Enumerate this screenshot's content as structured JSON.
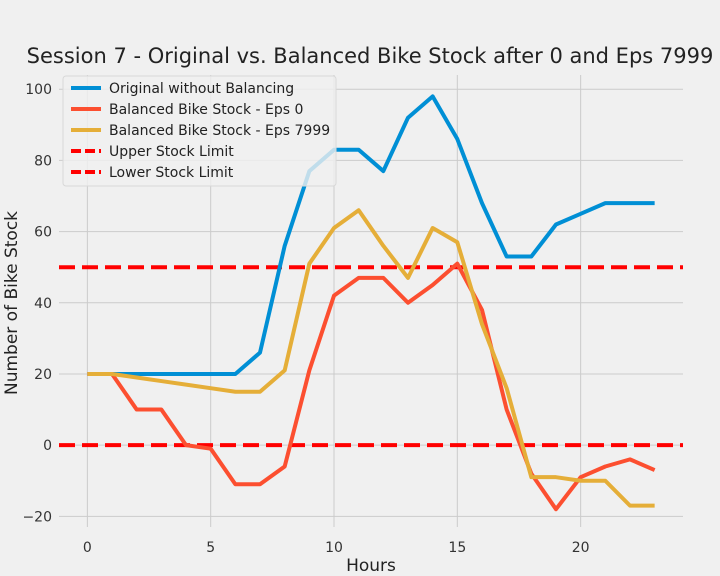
{
  "chart_data": {
    "type": "line",
    "title": "Session 7 - Original vs. Balanced Bike Stock after 0 and Eps 7999",
    "xlabel": "Hours",
    "ylabel": "Number of Bike Stock",
    "xlim": [
      -1.15,
      24.15
    ],
    "ylim": [
      -23,
      104
    ],
    "x_ticks": [
      0,
      5,
      10,
      15,
      20
    ],
    "y_ticks": [
      -20,
      0,
      20,
      40,
      60,
      80,
      100
    ],
    "y_tick_labels": [
      "−20",
      "0",
      "20",
      "40",
      "60",
      "80",
      "100"
    ],
    "grid": true,
    "legend_position": "top-left",
    "x": [
      0,
      1,
      2,
      3,
      4,
      5,
      6,
      7,
      8,
      9,
      10,
      11,
      12,
      13,
      14,
      15,
      16,
      17,
      18,
      19,
      20,
      21,
      22,
      23
    ],
    "series": [
      {
        "name": "Original without Balancing",
        "color": "#008fd5",
        "style": "solid",
        "values": [
          20,
          20,
          20,
          20,
          20,
          20,
          20,
          26,
          56,
          77,
          83,
          83,
          77,
          92,
          98,
          86,
          68,
          53,
          53,
          62,
          65,
          68,
          68,
          68
        ]
      },
      {
        "name": "Balanced Bike Stock - Eps 0",
        "color": "#fc4f30",
        "style": "solid",
        "values": [
          20,
          20,
          10,
          10,
          0,
          -1,
          -11,
          -11,
          -6,
          21,
          42,
          47,
          47,
          40,
          45,
          51,
          38,
          10,
          -8,
          -18,
          -9,
          -6,
          -4,
          -7
        ]
      },
      {
        "name": "Balanced Bike Stock - Eps 7999",
        "color": "#e5ae38",
        "style": "solid",
        "values": [
          20,
          20,
          19,
          18,
          17,
          16,
          15,
          15,
          21,
          51,
          61,
          66,
          56,
          47,
          61,
          57,
          34,
          16,
          -9,
          -9,
          -10,
          -10,
          -17,
          -17
        ]
      },
      {
        "name": "Upper Stock Limit",
        "color": "#ff0000",
        "style": "dashed",
        "constant": 50
      },
      {
        "name": "Lower Stock Limit",
        "color": "#ff0000",
        "style": "dashed",
        "constant": 0
      }
    ]
  }
}
